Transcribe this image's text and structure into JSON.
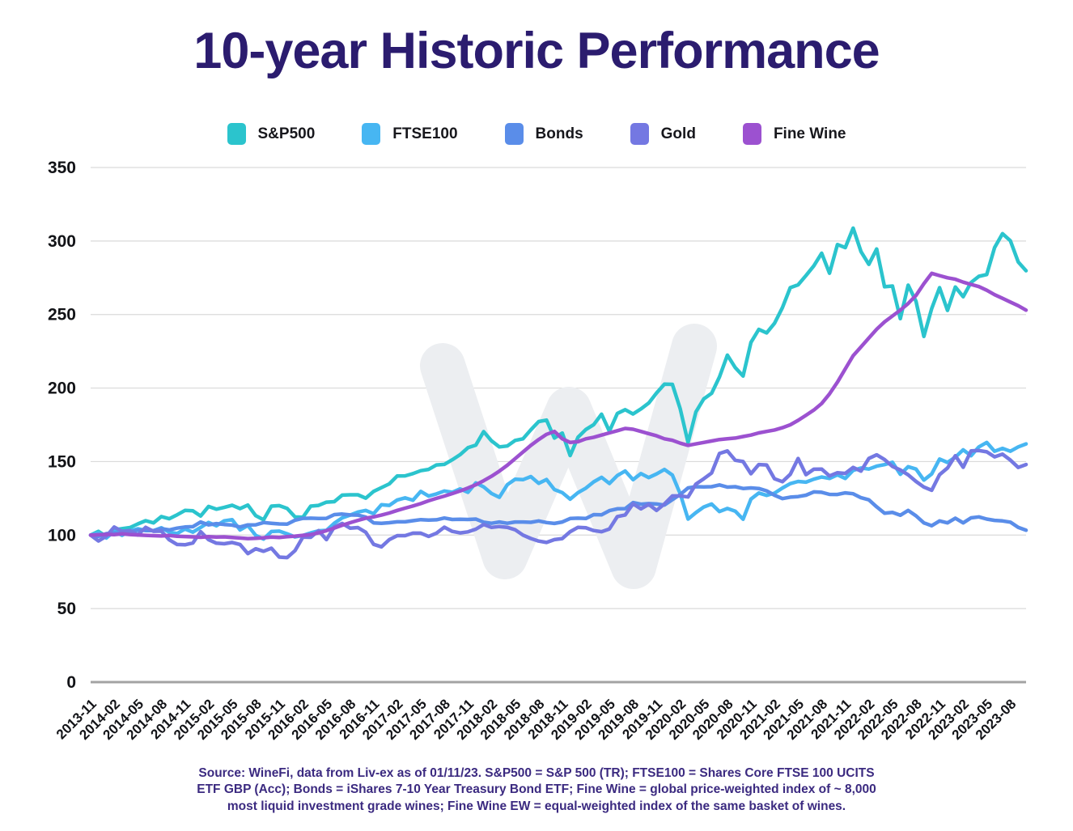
{
  "title": "10-year Historic Performance",
  "legend": [
    {
      "label": "S&P500",
      "color": "#2bc4cd"
    },
    {
      "label": "FTSE100",
      "color": "#47b6f2"
    },
    {
      "label": "Bonds",
      "color": "#5a8de9"
    },
    {
      "label": "Gold",
      "color": "#7478e2"
    },
    {
      "label": "Fine Wine",
      "color": "#9c51d0"
    }
  ],
  "footer": {
    "lines": [
      "Source: WineFi, data from Liv-ex as of 01/11/23. S&P500 = S&P 500 (TR); FTSE100 = Shares Core FTSE 100 UCITS",
      "ETF GBP (Acc); Bonds = iShares 7-10 Year Treasury Bond ETF; Fine Wine = global price-weighted index of ~ 8,000",
      "most liquid investment grade wines; Fine Wine EW = equal-weighted index of the same basket of wines."
    ]
  },
  "chart_data": {
    "type": "line",
    "title": "10-year Historic Performance",
    "x_unit": "month",
    "x_start": "2013-11",
    "x_end": "2023-10",
    "x_tick_labels": [
      "2013-11",
      "2014-02",
      "2014-05",
      "2014-08",
      "2014-11",
      "2015-02",
      "2015-05",
      "2015-08",
      "2015-11",
      "2016-02",
      "2016-05",
      "2016-08",
      "2016-11",
      "2017-02",
      "2017-05",
      "2017-08",
      "2017-11",
      "2018-02",
      "2018-05",
      "2018-08",
      "2018-11",
      "2019-02",
      "2019-05",
      "2019-08",
      "2019-11",
      "2020-02",
      "2020-05",
      "2020-08",
      "2020-11",
      "2021-02",
      "2021-05",
      "2021-08",
      "2021-11",
      "2022-02",
      "2022-05",
      "2022-08",
      "2022-11",
      "2023-02",
      "2023-05",
      "2023-08"
    ],
    "x_tick_every_n_months": 3,
    "ylim": [
      0,
      350
    ],
    "yticks": [
      0,
      50,
      100,
      150,
      200,
      250,
      300,
      350
    ],
    "base_value": 100,
    "grid": "horizontal",
    "legend_position": "top",
    "series": [
      {
        "name": "S&P500",
        "color": "#2bc4cd",
        "values": [
          100,
          102.5,
          99,
          103.5,
          104.4,
          105.1,
          107.6,
          109.8,
          108.3,
          112.6,
          111.1,
          113.8,
          116.8,
          116.5,
          113,
          119.5,
          117.6,
          118.8,
          120.3,
          118,
          120.4,
          113.2,
          110.4,
          119.7,
          120,
          118.1,
          112.3,
          112.1,
          119.7,
          120.2,
          122.4,
          122.7,
          127.2,
          127.4,
          127.4,
          125.1,
          129.7,
          132.3,
          134.8,
          140.2,
          140.3,
          141.8,
          143.8,
          144.7,
          147.7,
          148.1,
          151.2,
          154.7,
          159.4,
          161.2,
          170.4,
          164.1,
          160,
          160.6,
          164.4,
          165.5,
          171.6,
          177.2,
          178.2,
          166,
          169.4,
          154.1,
          166.5,
          171.8,
          175.1,
          182.2,
          170.6,
          182.7,
          185.3,
          182.4,
          185.8,
          189.8,
          196.7,
          202.6,
          202.5,
          185.9,
          162.9,
          183.8,
          192.6,
          196.4,
          207.5,
          222.4,
          213.9,
          208.2,
          231,
          239.9,
          237.5,
          244,
          254.7,
          268.3,
          270.2,
          276.5,
          283.1,
          291.7,
          278.1,
          297.6,
          295.5,
          308.8,
          292.8,
          284.1,
          294.6,
          268.9,
          269.4,
          247.2,
          270,
          259,
          235.1,
          254.1,
          268.3,
          252.8,
          268.7,
          262.1,
          271.8,
          276,
          277.2,
          295.5,
          305,
          300.2,
          285.8,
          279.8
        ]
      },
      {
        "name": "FTSE100",
        "color": "#47b6f2",
        "values": [
          100,
          101.5,
          98,
          102.5,
          99.8,
          102.9,
          104.3,
          103.1,
          103,
          105,
          102,
          101.1,
          104.1,
          102,
          105.2,
          108.6,
          106.3,
          109.7,
          110.5,
          103.5,
          106.5,
          99.8,
          97.3,
          102.4,
          102.7,
          100.9,
          98.7,
          99.7,
          101.5,
          102.9,
          103.2,
          108.1,
          111.7,
          113.6,
          115.7,
          116.8,
          114.5,
          120.7,
          120.2,
          123.9,
          125.3,
          123.7,
          129.7,
          126.5,
          128,
          130,
          129.1,
          131.4,
          129.1,
          135.5,
          132.8,
          128.3,
          125.7,
          134.2,
          138,
          137.7,
          139.8,
          135.2,
          137.8,
          131,
          128.9,
          124.4,
          128.9,
          131.9,
          136.2,
          139.3,
          135.1,
          140.5,
          143.6,
          137.7,
          141.8,
          139.1,
          141.6,
          144.6,
          140.8,
          128.1,
          110.9,
          115.3,
          119.1,
          121.1,
          116,
          118.1,
          116.3,
          110.8,
          124.5,
          128.6,
          127,
          128.5,
          132,
          135,
          136.5,
          136,
          138,
          139.5,
          138.5,
          141,
          138.5,
          144,
          145.6,
          144.9,
          146.9,
          147.9,
          149.5,
          141.3,
          146.5,
          144.9,
          137.4,
          141.6,
          151.7,
          149.4,
          153,
          158,
          154,
          160,
          163,
          157,
          159,
          157,
          160,
          162
        ]
      },
      {
        "name": "Bonds",
        "color": "#5a8de9",
        "values": [
          100,
          99.1,
          101,
          101.5,
          101.2,
          102.1,
          103.3,
          103.2,
          103,
          104.4,
          103.5,
          104.7,
          105.5,
          105.7,
          108.9,
          106.9,
          107.8,
          107.2,
          106.8,
          105.5,
          106.9,
          107,
          108.5,
          108,
          107.6,
          107.4,
          110.1,
          111.4,
          111.5,
          111.3,
          111.4,
          113.9,
          114.3,
          113.7,
          113.6,
          112.2,
          108.3,
          108,
          108.4,
          109,
          109,
          109.8,
          110.5,
          110.2,
          110.4,
          111.6,
          110.6,
          110.7,
          110.6,
          110.9,
          108.8,
          108,
          108.9,
          108,
          108.9,
          108.9,
          108.7,
          109.6,
          108.5,
          107.9,
          108.9,
          111.3,
          111.5,
          111.3,
          113.9,
          113.8,
          116.6,
          117.9,
          118,
          122.1,
          121,
          121.4,
          121.1,
          120.4,
          124.1,
          127.6,
          132.1,
          132.9,
          132.8,
          132.9,
          134.1,
          132.6,
          132.9,
          131.7,
          132.1,
          131.7,
          130.1,
          127.1,
          124.8,
          125.8,
          126.2,
          127.1,
          129.4,
          129.1,
          127.7,
          127.6,
          128.7,
          128.1,
          125.4,
          124,
          119.2,
          114.9,
          115.4,
          113.5,
          116.8,
          113.1,
          108.3,
          106.4,
          109.6,
          108.3,
          111.5,
          108.3,
          111.7,
          112.4,
          110.9,
          110,
          109.6,
          108.8,
          105.2,
          103.3
        ]
      },
      {
        "name": "Gold",
        "color": "#7478e2",
        "values": [
          100,
          96,
          99.2,
          105.5,
          102.5,
          103.1,
          100.1,
          105.3,
          102.6,
          102.7,
          96.8,
          93.6,
          93.4,
          94.6,
          102.3,
          96.9,
          94.5,
          94.1,
          95,
          93.6,
          87.4,
          90.7,
          89,
          91.1,
          85,
          84.7,
          89.4,
          98.6,
          98.5,
          103,
          96.9,
          105.5,
          107.9,
          104.7,
          105.1,
          101.9,
          93.7,
          92,
          96.9,
          99.6,
          99.6,
          101.3,
          101.3,
          99.1,
          101.3,
          105.4,
          102.5,
          101.5,
          102.2,
          104,
          107.2,
          105.2,
          105.8,
          105.3,
          103.6,
          100,
          97.7,
          95.9,
          95,
          96.9,
          97.6,
          102.3,
          105.3,
          105,
          103.1,
          102.3,
          104.2,
          112.6,
          113.7,
          121.3,
          117.8,
          120.9,
          116.8,
          121.2,
          126.6,
          126.6,
          125.9,
          134.7,
          138.3,
          142.2,
          155.5,
          157.2,
          150.9,
          150,
          141.7,
          148,
          147.7,
          138.3,
          136.3,
          141.3,
          152.1,
          141.1,
          144.8,
          144.9,
          140.2,
          142.4,
          141.9,
          146,
          143.5,
          152.1,
          154.6,
          151.4,
          146.7,
          144.3,
          141,
          136.5,
          132.7,
          130.5,
          141.1,
          145.6,
          154,
          146.1,
          157.2,
          157.5,
          156.6,
          153.2,
          155,
          151,
          146,
          148
        ]
      },
      {
        "name": "Fine Wine",
        "color": "#9c51d0",
        "values": [
          100,
          100.2,
          100.5,
          100.3,
          100.8,
          100.4,
          100.1,
          99.8,
          99.6,
          99.4,
          99.7,
          99.2,
          99,
          98.8,
          98.5,
          98.9,
          98.6,
          98.8,
          98.4,
          98,
          97.6,
          97.8,
          98.2,
          98.6,
          98.4,
          98.9,
          99.3,
          99.8,
          100.4,
          101.5,
          103,
          104.8,
          106.7,
          108.4,
          110,
          111.5,
          112.4,
          113.6,
          115,
          116.8,
          118.3,
          119.8,
          121.4,
          123.3,
          125,
          126.5,
          128.2,
          130,
          132,
          134.2,
          137,
          140,
          143.5,
          147.5,
          152,
          156.5,
          161,
          165,
          168.5,
          170.5,
          165.5,
          163,
          163.5,
          165.5,
          166.5,
          168,
          169.5,
          171,
          172.5,
          172,
          170.5,
          169,
          167.5,
          165.5,
          164.5,
          162.5,
          161,
          162,
          163,
          164,
          165,
          165.5,
          166,
          167,
          168,
          169.5,
          170.5,
          171.5,
          173,
          175,
          178,
          181.5,
          185,
          189.5,
          196,
          204,
          213,
          222,
          228,
          234,
          240,
          245,
          249,
          253,
          257.5,
          263,
          271,
          278,
          276.5,
          275,
          274,
          272,
          270.5,
          269,
          266.5,
          263.5,
          261,
          258.5,
          256,
          253
        ]
      }
    ]
  }
}
